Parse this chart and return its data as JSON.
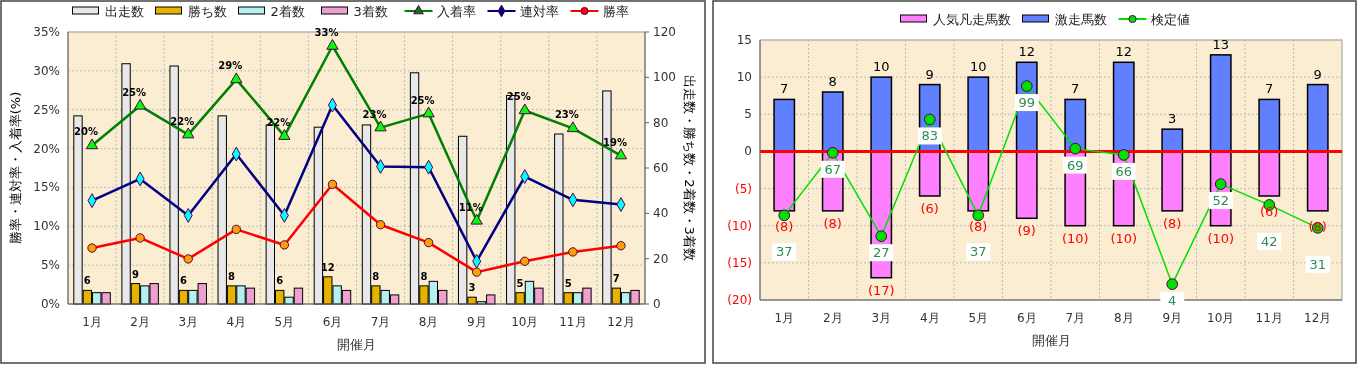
{
  "chart_data": [
    {
      "type": "bar",
      "xlabel": "開催月",
      "ylabel": "勝率・連対率・入着率(%)",
      "y2label": "出走数・勝ち数・2着数・3着数",
      "categories": [
        "1月",
        "2月",
        "3月",
        "4月",
        "5月",
        "6月",
        "7月",
        "8月",
        "9月",
        "10月",
        "11月",
        "12月"
      ],
      "series": [
        {
          "name": "出走数",
          "type": "bar",
          "axis": "y2",
          "color": "#e8e8e8",
          "values": [
            83,
            106,
            105,
            83,
            79,
            78,
            79,
            102,
            74,
            92,
            75,
            94
          ]
        },
        {
          "name": "勝ち数",
          "type": "bar",
          "axis": "y2",
          "color": "#e6b400",
          "values": [
            6,
            9,
            6,
            8,
            6,
            12,
            8,
            8,
            3,
            5,
            5,
            7
          ],
          "value_labels": [
            "6",
            "9",
            "6",
            "8",
            "6",
            "12",
            "8",
            "8",
            "3",
            "5",
            "5",
            "7"
          ]
        },
        {
          "name": "2着数",
          "type": "bar",
          "axis": "y2",
          "color": "#b4f0f0",
          "values": [
            5,
            8,
            6,
            8,
            3,
            8,
            6,
            10,
            1,
            10,
            5,
            5
          ]
        },
        {
          "name": "3着数",
          "type": "bar",
          "axis": "y2",
          "color": "#f0a0d0",
          "values": [
            5,
            9,
            9,
            7,
            7,
            6,
            4,
            6,
            4,
            7,
            7,
            6
          ]
        },
        {
          "name": "入着率",
          "type": "line",
          "color": "#008000",
          "marker": "triangle",
          "values": [
            20.4,
            25.5,
            21.8,
            28.9,
            21.6,
            33.2,
            22.7,
            24.5,
            10.7,
            24.9,
            22.6,
            19.1
          ],
          "value_labels": [
            "20%",
            "25%",
            "22%",
            "29%",
            "22%",
            "33%",
            "23%",
            "25%",
            "11%",
            "25%",
            "23%",
            "19%"
          ]
        },
        {
          "name": "連対率",
          "type": "line",
          "color": "#000080",
          "marker": "diamond",
          "values": [
            13.3,
            16.1,
            11.4,
            19.3,
            11.4,
            25.6,
            17.7,
            17.6,
            5.5,
            16.4,
            13.4,
            12.8
          ]
        },
        {
          "name": "勝率",
          "type": "line",
          "color": "#ff0000",
          "marker": "circle",
          "values": [
            7.2,
            8.5,
            5.8,
            9.6,
            7.6,
            15.4,
            10.2,
            7.9,
            4.1,
            5.5,
            6.7,
            7.5
          ]
        }
      ],
      "ylim": [
        0,
        35
      ],
      "yticks": [
        {
          "value": 0,
          "label": "0%"
        },
        {
          "value": 5,
          "label": "5%"
        },
        {
          "value": 10,
          "label": "10%"
        },
        {
          "value": 15,
          "label": "15%"
        },
        {
          "value": 20,
          "label": "20%"
        },
        {
          "value": 25,
          "label": "25%"
        },
        {
          "value": 30,
          "label": "30%"
        },
        {
          "value": 35,
          "label": "35%"
        }
      ],
      "y2lim": [
        0,
        120
      ],
      "y2ticks": [
        0,
        20,
        40,
        60,
        80,
        100,
        120
      ],
      "grid": true,
      "legend": "top"
    },
    {
      "type": "bar",
      "xlabel": "開催月",
      "stacked": true,
      "categories": [
        "1月",
        "2月",
        "3月",
        "4月",
        "5月",
        "6月",
        "7月",
        "8月",
        "9月",
        "10月",
        "11月",
        "12月"
      ],
      "series": [
        {
          "name": "人気凡走馬数",
          "type": "bar",
          "color": "#ff80ff",
          "values": [
            -8,
            -8,
            -17,
            -6,
            -8,
            -9,
            -10,
            -10,
            -8,
            -10,
            -6,
            -8
          ],
          "value_labels": [
            "(8)",
            "(8)",
            "(17)",
            "(6)",
            "(8)",
            "(9)",
            "(10)",
            "(10)",
            "(8)",
            "(10)",
            "(6)",
            "(8)"
          ]
        },
        {
          "name": "激走馬数",
          "type": "bar",
          "color": "#6080ff",
          "values": [
            7,
            8,
            10,
            9,
            10,
            12,
            7,
            12,
            3,
            13,
            7,
            9
          ],
          "value_labels": [
            "7",
            "8",
            "10",
            "9",
            "10",
            "12",
            "7",
            "12",
            "3",
            "13",
            "7",
            "9"
          ]
        },
        {
          "name": "検定値",
          "type": "line",
          "axis": "y2",
          "color": "#00e000",
          "marker": "circle",
          "values": [
            37,
            67,
            27,
            83,
            37,
            99,
            69,
            66,
            4,
            52,
            42,
            31
          ],
          "value_labels": [
            "37",
            "67",
            "27",
            "83",
            "37",
            "99",
            "69",
            "66",
            "4",
            "52",
            "42",
            "31"
          ]
        }
      ],
      "ylim": [
        -20,
        15
      ],
      "yticks": [
        {
          "value": -20,
          "label": "(20)"
        },
        {
          "value": -15,
          "label": "(15)"
        },
        {
          "value": -10,
          "label": "(10)"
        },
        {
          "value": -5,
          "label": "(5)"
        },
        0,
        5,
        10,
        15
      ],
      "y2lim": [
        -3.6,
        121.1
      ],
      "tick_labels": "xy",
      "grid": true,
      "legend": "top",
      "ref_lines": [
        {
          "axis": "y",
          "value": 0,
          "color": "#ff0000"
        }
      ]
    }
  ]
}
